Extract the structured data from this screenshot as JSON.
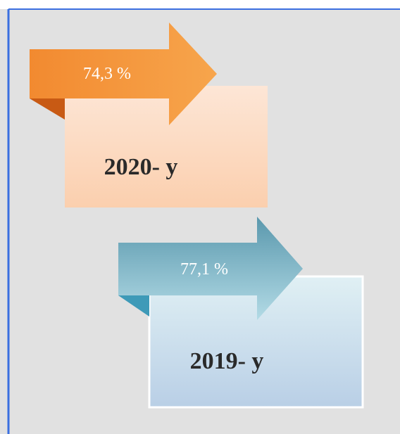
{
  "nodes": [
    {
      "percent": "74,3 %",
      "label": "2020- y"
    },
    {
      "percent": "77,1 %",
      "label": "2019- y"
    }
  ]
}
